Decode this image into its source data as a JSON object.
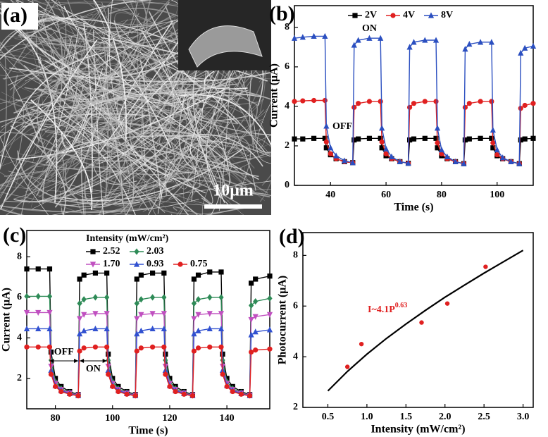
{
  "image_panel": {
    "panel_label": "(a)",
    "scale_bar": "10μm"
  },
  "chart_data": [
    {
      "type": "line",
      "panel_label": "(b)",
      "xlabel": "Time (s)",
      "ylabel": "Current (μA)",
      "xlim": [
        27,
        113
      ],
      "ylim": [
        0,
        9.1
      ],
      "xticks": [
        40,
        60,
        80,
        100
      ],
      "yticks": [
        0,
        2,
        4,
        6,
        8
      ],
      "annotations": [
        "ON",
        "OFF"
      ],
      "x": [
        27,
        30,
        34,
        38,
        38.5,
        40,
        42,
        45,
        48,
        48.5,
        50,
        54,
        58,
        58.5,
        60,
        62,
        65,
        68,
        68.5,
        70,
        74,
        78,
        78.5,
        80,
        82,
        85,
        88,
        88.5,
        90,
        94,
        98,
        98.5,
        100,
        102,
        105,
        108,
        108.5,
        110,
        113
      ],
      "series": [
        {
          "name": "2V",
          "color": "#000000",
          "marker": "square",
          "values": [
            2.35,
            2.35,
            2.38,
            2.38,
            1.9,
            1.55,
            1.35,
            1.2,
            1.15,
            2.3,
            2.35,
            2.38,
            2.38,
            1.9,
            1.5,
            1.35,
            1.2,
            1.12,
            2.3,
            2.35,
            2.38,
            2.38,
            1.9,
            1.5,
            1.35,
            1.2,
            1.1,
            2.3,
            2.35,
            2.38,
            2.38,
            1.9,
            1.5,
            1.35,
            1.2,
            1.1,
            2.3,
            2.35,
            2.38
          ]
        },
        {
          "name": "4V",
          "color": "#e02020",
          "marker": "circle",
          "values": [
            4.25,
            4.28,
            4.3,
            4.3,
            2.2,
            1.6,
            1.35,
            1.2,
            1.15,
            3.95,
            4.15,
            4.25,
            4.25,
            2.2,
            1.6,
            1.35,
            1.2,
            1.12,
            3.95,
            4.15,
            4.25,
            4.25,
            2.15,
            1.6,
            1.35,
            1.2,
            1.1,
            3.95,
            4.15,
            4.25,
            4.25,
            2.15,
            1.55,
            1.35,
            1.2,
            1.1,
            3.9,
            4.05,
            4.15
          ]
        },
        {
          "name": "8V",
          "color": "#2b4fc0",
          "marker": "triangle",
          "values": [
            7.45,
            7.5,
            7.55,
            7.55,
            3.0,
            1.9,
            1.5,
            1.25,
            1.15,
            7.1,
            7.35,
            7.45,
            7.45,
            2.9,
            1.85,
            1.45,
            1.2,
            1.12,
            7.0,
            7.25,
            7.35,
            7.35,
            2.9,
            1.8,
            1.45,
            1.2,
            1.1,
            6.9,
            7.15,
            7.25,
            7.25,
            2.8,
            1.8,
            1.4,
            1.2,
            1.1,
            6.7,
            6.95,
            7.05
          ]
        }
      ]
    },
    {
      "type": "line",
      "panel_label": "(c)",
      "xlabel": "Time (s)",
      "ylabel": "Current (μA)",
      "xlim": [
        70,
        155
      ],
      "ylim": [
        0.5,
        9.3
      ],
      "xticks": [
        80,
        100,
        120,
        140
      ],
      "yticks": [
        2,
        4,
        6,
        8
      ],
      "legend_title": "Intensity (mW/cm²)",
      "annotations": [
        "OFF",
        "ON"
      ],
      "x": [
        70,
        74,
        78,
        78.5,
        80,
        82,
        85,
        88,
        88.5,
        90,
        94,
        98,
        98.5,
        100,
        102,
        105,
        108,
        108.5,
        110,
        114,
        118,
        118.5,
        120,
        122,
        125,
        128,
        128.5,
        130,
        134,
        138,
        138.5,
        140,
        142,
        145,
        148,
        148.5,
        150,
        155
      ],
      "series": [
        {
          "name": "2.52",
          "color": "#000000",
          "marker": "square",
          "values": [
            7.4,
            7.4,
            7.4,
            3.3,
            2.0,
            1.6,
            1.35,
            1.2,
            6.9,
            7.1,
            7.2,
            7.2,
            3.2,
            2.0,
            1.6,
            1.35,
            1.2,
            6.9,
            7.1,
            7.2,
            7.2,
            3.2,
            2.0,
            1.6,
            1.35,
            1.2,
            6.9,
            7.1,
            7.25,
            7.25,
            3.2,
            2.0,
            1.6,
            1.35,
            1.2,
            6.7,
            6.9,
            7.05
          ]
        },
        {
          "name": "2.03",
          "color": "#2e8b57",
          "marker": "diamond",
          "values": [
            6.05,
            6.05,
            6.05,
            2.9,
            1.85,
            1.5,
            1.3,
            1.18,
            5.7,
            5.9,
            6.0,
            6.0,
            2.9,
            1.85,
            1.5,
            1.3,
            1.18,
            5.7,
            5.9,
            6.0,
            6.0,
            2.9,
            1.85,
            1.5,
            1.3,
            1.18,
            5.7,
            5.9,
            6.0,
            6.0,
            2.9,
            1.85,
            1.5,
            1.3,
            1.18,
            5.6,
            5.8,
            5.95
          ]
        },
        {
          "name": "1.70",
          "color": "#c050c0",
          "marker": "triangle-down",
          "values": [
            5.25,
            5.25,
            5.25,
            2.6,
            1.75,
            1.45,
            1.28,
            1.16,
            4.95,
            5.15,
            5.2,
            5.2,
            2.6,
            1.75,
            1.45,
            1.28,
            1.16,
            4.95,
            5.15,
            5.2,
            5.2,
            2.6,
            1.75,
            1.45,
            1.28,
            1.16,
            4.95,
            5.15,
            5.2,
            5.2,
            2.6,
            1.75,
            1.45,
            1.28,
            1.16,
            4.9,
            5.05,
            5.15
          ]
        },
        {
          "name": "0.93",
          "color": "#3050d0",
          "marker": "triangle",
          "values": [
            4.45,
            4.45,
            4.45,
            2.4,
            1.65,
            1.4,
            1.25,
            1.15,
            4.2,
            4.35,
            4.45,
            4.45,
            2.4,
            1.65,
            1.4,
            1.25,
            1.15,
            4.2,
            4.35,
            4.45,
            4.45,
            2.4,
            1.65,
            1.4,
            1.25,
            1.15,
            4.2,
            4.35,
            4.45,
            4.45,
            2.4,
            1.65,
            1.4,
            1.25,
            1.15,
            4.15,
            4.3,
            4.4
          ]
        },
        {
          "name": "0.75",
          "color": "#e02020",
          "marker": "circle",
          "values": [
            3.55,
            3.55,
            3.55,
            2.2,
            1.6,
            1.35,
            1.22,
            1.14,
            3.35,
            3.5,
            3.55,
            3.55,
            2.2,
            1.6,
            1.35,
            1.22,
            1.14,
            3.35,
            3.5,
            3.55,
            3.55,
            2.2,
            1.6,
            1.35,
            1.22,
            1.14,
            3.35,
            3.5,
            3.55,
            3.55,
            2.2,
            1.6,
            1.35,
            1.22,
            1.14,
            3.3,
            3.4,
            3.45
          ]
        }
      ]
    },
    {
      "type": "scatter",
      "panel_label": "(d)",
      "xlabel": "Intensity (mW/cm²)",
      "ylabel": "Photocurrent (μA)",
      "xlim": [
        0.18,
        3.13
      ],
      "ylim": [
        2,
        8.9
      ],
      "xticks": [
        0.5,
        {
          "value": 1,
          "label": "1.0"
        },
        1.5,
        {
          "value": 2,
          "label": "2.0"
        },
        2.5,
        {
          "value": 3,
          "label": "3.0"
        }
      ],
      "yticks": [
        2,
        4,
        6,
        8
      ],
      "annotation": "I~4.1P",
      "annotation_exponent": "0.63",
      "annotation_color": "#e02020",
      "x": [
        0.75,
        0.93,
        1.7,
        2.03,
        2.52
      ],
      "values": [
        3.6,
        4.5,
        5.35,
        6.1,
        7.55
      ],
      "color": "#e02020",
      "fit": {
        "color": "#000000",
        "x": [
          0.5,
          0.75,
          1,
          1.25,
          1.5,
          1.75,
          2,
          2.25,
          2.5,
          2.75,
          3
        ],
        "values": [
          2.65,
          3.42,
          4.1,
          4.72,
          5.29,
          5.83,
          6.35,
          6.83,
          7.3,
          7.75,
          8.2
        ]
      }
    }
  ]
}
